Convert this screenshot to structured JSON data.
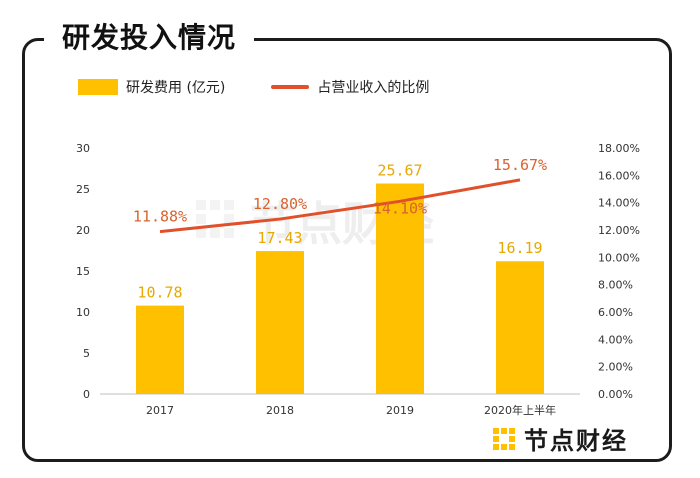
{
  "title": "研发投入情况",
  "brand": "节点财经",
  "watermark": "节点财经",
  "colors": {
    "bar": "#ffc000",
    "line": "#e0512b",
    "bar_label": "#e8a800",
    "line_label": "#d9622e"
  },
  "chart_data": {
    "type": "bar",
    "categories": [
      "2017",
      "2018",
      "2019",
      "2020年上半年"
    ],
    "series": [
      {
        "name": "研发费用 (亿元)",
        "type": "bar",
        "axis": "left",
        "values": [
          10.78,
          17.43,
          25.67,
          16.19
        ],
        "labels": [
          "10.78",
          "17.43",
          "25.67",
          "16.19"
        ]
      },
      {
        "name": "占营业收入的比例",
        "type": "line",
        "axis": "right",
        "values": [
          11.88,
          12.8,
          14.1,
          15.67
        ],
        "labels": [
          "11.88%",
          "12.80%",
          "14.10%",
          "15.67%"
        ]
      }
    ],
    "y_left": {
      "ylim": [
        0,
        30
      ],
      "ticks": [
        "0",
        "5",
        "10",
        "15",
        "20",
        "25",
        "30"
      ]
    },
    "y_right": {
      "ylim": [
        0,
        18
      ],
      "ticks": [
        "0.00%",
        "2.00%",
        "4.00%",
        "6.00%",
        "8.00%",
        "10.00%",
        "12.00%",
        "14.00%",
        "16.00%",
        "18.00%"
      ]
    },
    "legend": "top-left",
    "grid": false
  }
}
